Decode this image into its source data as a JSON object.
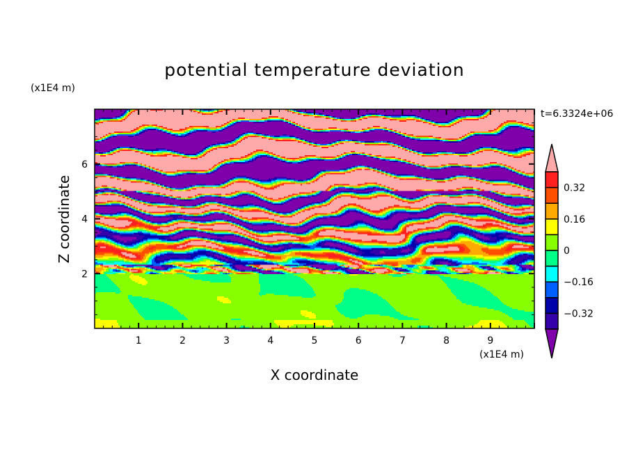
{
  "chart_data": {
    "type": "heatmap",
    "subtype": "filled-contour",
    "title": "potential temperature deviation",
    "xlabel": "X coordinate",
    "ylabel": "Z coordinate",
    "x_unit": "(x1E4 m)",
    "y_unit": "(x1E4 m)",
    "time_label": "t=6.3324e+06",
    "xlim": [
      0,
      10
    ],
    "ylim": [
      0,
      8
    ],
    "x_ticks": [
      "1",
      "2",
      "3",
      "4",
      "5",
      "6",
      "7",
      "8",
      "9"
    ],
    "x_tick_values": [
      1,
      2,
      3,
      4,
      5,
      6,
      7,
      8,
      9
    ],
    "y_ticks": [
      "2",
      "4",
      "6"
    ],
    "y_tick_values": [
      2,
      4,
      6
    ],
    "levels": [
      -0.4,
      -0.32,
      -0.24,
      -0.16,
      -0.08,
      0,
      0.08,
      0.16,
      0.24,
      0.32,
      0.4
    ],
    "colorbar_labels": [
      "0.32",
      "0.16",
      "0",
      "−0.16",
      "−0.32"
    ],
    "colorbar_label_values": [
      0.32,
      0.16,
      0,
      -0.16,
      -0.32
    ],
    "colors": {
      "above": "#ffaaaa",
      "bins_high_to_low": [
        "#ff2020",
        "#ff5000",
        "#ffaa00",
        "#ffff00",
        "#88ff00",
        "#00ff88",
        "#00ffff",
        "#0060ff",
        "#0000aa",
        "#3300aa"
      ],
      "below": "#7f00aa"
    }
  }
}
